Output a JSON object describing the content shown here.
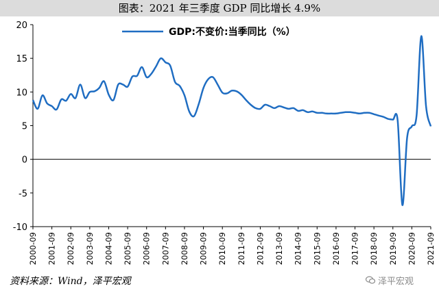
{
  "header": {
    "title": "图表：2021 年三季度 GDP 同比增长 4.9%"
  },
  "footer": {
    "source": "资料来源：Wind，泽平宏观",
    "watermark_text": "泽平宏观",
    "watermark_icon": "wechat-icon"
  },
  "colors": {
    "series": "#1f6dc2",
    "title_bg": "#dcdcdc"
  },
  "chart_data": {
    "type": "line",
    "title": "",
    "xlabel": "",
    "ylabel": "",
    "ylim": [
      -10,
      20
    ],
    "yticks": [
      -10,
      -5,
      0,
      5,
      10,
      15,
      20
    ],
    "xlim": [
      "2000-09",
      "2021-09"
    ],
    "xticks": [
      "2000-09",
      "2001-09",
      "2002-09",
      "2003-09",
      "2004-09",
      "2005-09",
      "2006-09",
      "2007-09",
      "2008-09",
      "2009-09",
      "2010-09",
      "2011-09",
      "2012-09",
      "2013-09",
      "2014-09",
      "2015-09",
      "2016-09",
      "2017-09",
      "2018-09",
      "2019-09",
      "2020-09",
      "2021-09"
    ],
    "grid": false,
    "legend": "top-center",
    "series": [
      {
        "name": "GDP:不变价:当季同比（%）",
        "points": [
          [
            "2000-09",
            8.8
          ],
          [
            "2000-12",
            7.5
          ],
          [
            "2001-03",
            9.5
          ],
          [
            "2001-06",
            8.3
          ],
          [
            "2001-09",
            7.9
          ],
          [
            "2001-12",
            7.4
          ],
          [
            "2002-03",
            8.9
          ],
          [
            "2002-06",
            8.7
          ],
          [
            "2002-09",
            9.7
          ],
          [
            "2002-12",
            9.1
          ],
          [
            "2003-03",
            11.1
          ],
          [
            "2003-06",
            9.1
          ],
          [
            "2003-09",
            10.0
          ],
          [
            "2003-12",
            10.1
          ],
          [
            "2004-03",
            10.6
          ],
          [
            "2004-06",
            11.6
          ],
          [
            "2004-09",
            9.6
          ],
          [
            "2004-12",
            8.8
          ],
          [
            "2005-03",
            11.1
          ],
          [
            "2005-06",
            11.1
          ],
          [
            "2005-09",
            10.8
          ],
          [
            "2005-12",
            12.3
          ],
          [
            "2006-03",
            12.4
          ],
          [
            "2006-06",
            13.7
          ],
          [
            "2006-09",
            12.2
          ],
          [
            "2006-12",
            12.7
          ],
          [
            "2007-03",
            13.8
          ],
          [
            "2007-06",
            15.0
          ],
          [
            "2007-09",
            14.4
          ],
          [
            "2007-12",
            13.9
          ],
          [
            "2008-03",
            11.5
          ],
          [
            "2008-06",
            10.9
          ],
          [
            "2008-09",
            9.5
          ],
          [
            "2008-12",
            7.1
          ],
          [
            "2009-03",
            6.4
          ],
          [
            "2009-06",
            8.2
          ],
          [
            "2009-09",
            10.6
          ],
          [
            "2009-12",
            11.9
          ],
          [
            "2010-03",
            12.2
          ],
          [
            "2010-06",
            11.1
          ],
          [
            "2010-09",
            9.9
          ],
          [
            "2010-12",
            9.8
          ],
          [
            "2011-03",
            10.2
          ],
          [
            "2011-06",
            10.1
          ],
          [
            "2011-09",
            9.6
          ],
          [
            "2011-12",
            8.8
          ],
          [
            "2012-03",
            8.1
          ],
          [
            "2012-06",
            7.6
          ],
          [
            "2012-09",
            7.5
          ],
          [
            "2012-12",
            8.1
          ],
          [
            "2013-03",
            7.9
          ],
          [
            "2013-06",
            7.6
          ],
          [
            "2013-09",
            7.9
          ],
          [
            "2013-12",
            7.7
          ],
          [
            "2014-03",
            7.5
          ],
          [
            "2014-06",
            7.6
          ],
          [
            "2014-09",
            7.2
          ],
          [
            "2014-12",
            7.3
          ],
          [
            "2015-03",
            7.0
          ],
          [
            "2015-06",
            7.1
          ],
          [
            "2015-09",
            6.9
          ],
          [
            "2015-12",
            6.9
          ],
          [
            "2016-03",
            6.8
          ],
          [
            "2016-06",
            6.8
          ],
          [
            "2016-09",
            6.8
          ],
          [
            "2016-12",
            6.9
          ],
          [
            "2017-03",
            7.0
          ],
          [
            "2017-06",
            7.0
          ],
          [
            "2017-09",
            6.9
          ],
          [
            "2017-12",
            6.8
          ],
          [
            "2018-03",
            6.9
          ],
          [
            "2018-06",
            6.9
          ],
          [
            "2018-09",
            6.7
          ],
          [
            "2018-12",
            6.5
          ],
          [
            "2019-03",
            6.3
          ],
          [
            "2019-06",
            6.0
          ],
          [
            "2019-09",
            5.9
          ],
          [
            "2019-12",
            5.8
          ],
          [
            "2020-03",
            -6.8
          ],
          [
            "2020-06",
            3.2
          ],
          [
            "2020-09",
            4.9
          ],
          [
            "2020-12",
            6.5
          ],
          [
            "2021-03",
            18.3
          ],
          [
            "2021-06",
            7.9
          ],
          [
            "2021-09",
            4.9
          ]
        ]
      }
    ]
  }
}
